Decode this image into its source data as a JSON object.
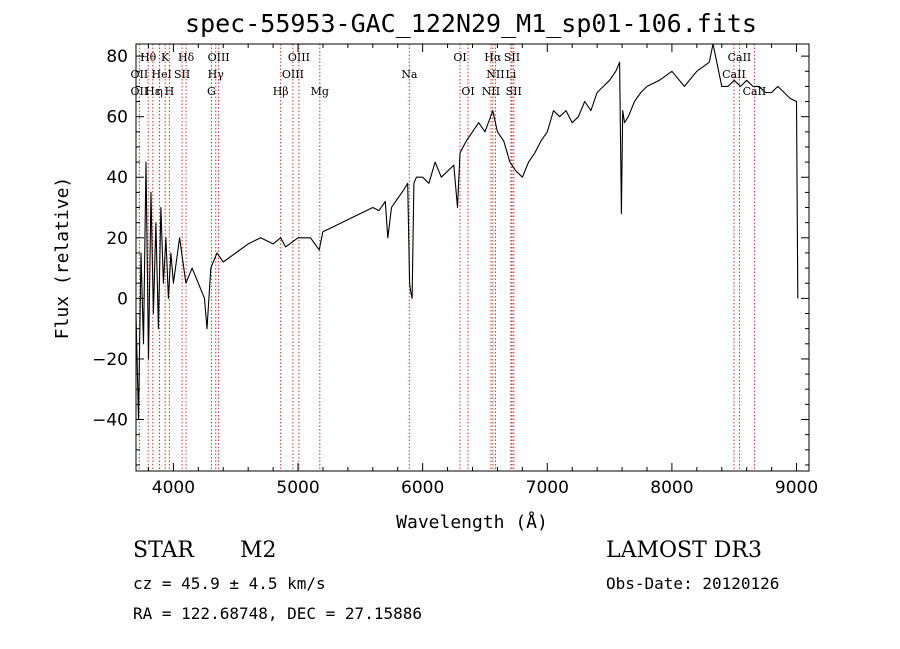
{
  "chart_data": {
    "type": "line",
    "title": "spec-55953-GAC_122N29_M1_sp01-106.fits",
    "xlabel": "Wavelength (Å)",
    "ylabel": "Flux (relative)",
    "xlim": [
      3700,
      9100
    ],
    "ylim": [
      -57,
      84
    ],
    "xticks": [
      4000,
      5000,
      6000,
      7000,
      8000,
      9000
    ],
    "yticks": [
      -40,
      -20,
      0,
      20,
      40,
      60,
      80
    ],
    "grid": false,
    "legend": "none",
    "line_color": "#000000",
    "marker_color": "#c0392b",
    "series": [
      {
        "x": [
          3700,
          3720,
          3740,
          3760,
          3780,
          3800,
          3820,
          3840,
          3860,
          3880,
          3900,
          3920,
          3940,
          3960,
          3980,
          4000,
          4050,
          4100,
          4150,
          4200,
          4250,
          4270,
          4300,
          4350,
          4400,
          4500,
          4600,
          4700,
          4800,
          4860,
          4900,
          5000,
          5100,
          5170,
          5200,
          5300,
          5400,
          5500,
          5600,
          5650,
          5700,
          5720,
          5750,
          5800,
          5850,
          5880,
          5895,
          5905,
          5915,
          5930,
          5950,
          6000,
          6050,
          6100,
          6150,
          6200,
          6250,
          6280,
          6300,
          6350,
          6400,
          6450,
          6500,
          6563,
          6600,
          6650,
          6700,
          6750,
          6800,
          6850,
          6900,
          6950,
          7000,
          7050,
          7100,
          7150,
          7200,
          7250,
          7300,
          7350,
          7400,
          7450,
          7500,
          7550,
          7580,
          7595,
          7605,
          7620,
          7650,
          7700,
          7750,
          7800,
          7900,
          8000,
          8100,
          8200,
          8300,
          8330,
          8400,
          8450,
          8500,
          8550,
          8600,
          8650,
          8700,
          8750,
          8800,
          8850,
          8900,
          8950,
          9000,
          9010
        ],
        "y": [
          -5,
          -40,
          15,
          -15,
          45,
          -20,
          35,
          -5,
          25,
          -10,
          30,
          5,
          20,
          0,
          15,
          5,
          20,
          5,
          10,
          5,
          0,
          -10,
          10,
          15,
          12,
          15,
          18,
          20,
          18,
          20,
          17,
          20,
          20,
          16,
          22,
          24,
          26,
          28,
          30,
          29,
          32,
          20,
          30,
          33,
          36,
          38,
          5,
          2,
          0,
          38,
          40,
          40,
          38,
          45,
          40,
          42,
          44,
          30,
          48,
          52,
          55,
          58,
          55,
          62,
          55,
          52,
          45,
          42,
          40,
          45,
          48,
          52,
          55,
          62,
          60,
          62,
          58,
          60,
          65,
          62,
          68,
          70,
          72,
          75,
          78,
          28,
          62,
          58,
          60,
          65,
          68,
          70,
          72,
          75,
          70,
          75,
          78,
          84,
          70,
          70,
          72,
          70,
          72,
          70,
          70,
          68,
          68,
          70,
          68,
          66,
          65,
          0
        ]
      }
    ],
    "annotations": [
      {
        "label": "Hθ",
        "x": 3798,
        "row": 0
      },
      {
        "label": "K",
        "x": 3934,
        "row": 0
      },
      {
        "label": "Hδ",
        "x": 4102,
        "row": 0
      },
      {
        "label": "OIII",
        "x": 4363,
        "row": 0
      },
      {
        "label": "OIII",
        "x": 5007,
        "row": 0
      },
      {
        "label": "OI",
        "x": 6300,
        "row": 0
      },
      {
        "label": "Hα",
        "x": 6563,
        "row": 0
      },
      {
        "label": "SII",
        "x": 6717,
        "row": 0
      },
      {
        "label": "CaII",
        "x": 8542,
        "row": 0
      },
      {
        "label": "OII",
        "x": 3727,
        "row": 1
      },
      {
        "label": "He",
        "x": 3889,
        "row": 1
      },
      {
        "label": "I",
        "x": 3970,
        "row": 1
      },
      {
        "label": "SII",
        "x": 4070,
        "row": 1
      },
      {
        "label": "Hγ",
        "x": 4340,
        "row": 1
      },
      {
        "label": "OIII",
        "x": 4959,
        "row": 1
      },
      {
        "label": "Na",
        "x": 5893,
        "row": 1
      },
      {
        "label": "NII",
        "x": 6584,
        "row": 1
      },
      {
        "label": "Li",
        "x": 6708,
        "row": 1
      },
      {
        "label": "CaII",
        "x": 8498,
        "row": 1
      },
      {
        "label": "OII",
        "x": 3727,
        "row": 2
      },
      {
        "label": "Hε",
        "x": 3835,
        "row": 2
      },
      {
        "label": "η",
        "x": 3889,
        "row": 2
      },
      {
        "label": "H",
        "x": 3968,
        "row": 2
      },
      {
        "label": "G",
        "x": 4305,
        "row": 2
      },
      {
        "label": "Hβ",
        "x": 4861,
        "row": 2
      },
      {
        "label": "Mg",
        "x": 5175,
        "row": 2
      },
      {
        "label": "OI",
        "x": 6364,
        "row": 2
      },
      {
        "label": "NII",
        "x": 6548,
        "row": 2
      },
      {
        "label": "SII",
        "x": 6731,
        "row": 2
      },
      {
        "label": "CaII",
        "x": 8662,
        "row": 2
      }
    ],
    "line_markers": [
      3727,
      3798,
      3835,
      3889,
      3934,
      3968,
      4070,
      4102,
      4305,
      4340,
      4363,
      4861,
      4959,
      5007,
      5175,
      5893,
      6300,
      6364,
      6548,
      6563,
      6584,
      6708,
      6717,
      6731,
      8498,
      8542,
      8662
    ]
  },
  "info": {
    "object_class": "STAR",
    "subclass": "M2",
    "survey": "LAMOST DR3",
    "cz": "cz = 45.9 ± 4.5 km/s",
    "obs_date": "Obs-Date: 20120126",
    "coords": "RA = 122.68748, DEC =  27.15886"
  }
}
